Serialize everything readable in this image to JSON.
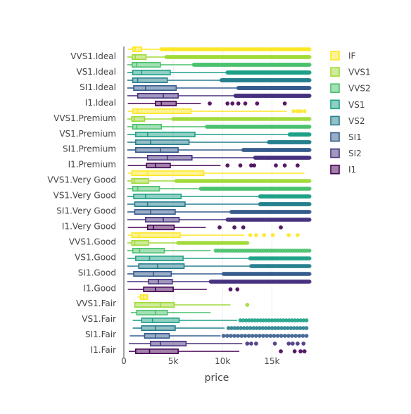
{
  "chart_data": {
    "type": "box",
    "orientation": "horizontal",
    "xlabel": "price",
    "xlim": [
      0,
      18823
    ],
    "x_ticks": [
      0,
      5000,
      10000,
      15000
    ],
    "x_tick_labels": [
      "0",
      "5k",
      "10k",
      "15k"
    ],
    "grid": "vertical",
    "legend_position": "right",
    "categories": [
      "VVS1.Ideal",
      "VS1.Ideal",
      "SI1.Ideal",
      "I1.Ideal",
      "VVS1.Premium",
      "VS1.Premium",
      "SI1.Premium",
      "I1.Premium",
      "VVS1.Very Good",
      "VS1.Very Good",
      "SI1.Very Good",
      "I1.Very Good",
      "VVS1.Good",
      "VS1.Good",
      "SI1.Good",
      "I1.Good",
      "VVS1.Fair",
      "VS1.Fair",
      "SI1.Fair",
      "I1.Fair"
    ],
    "cuts": [
      "Ideal",
      "Premium",
      "Very Good",
      "Good",
      "Fair"
    ],
    "series": [
      {
        "name": "IF",
        "color": "#fde725",
        "boxes": [
          {
            "min": 400,
            "q1": 900,
            "median": 1150,
            "q3": 1800,
            "max": 3600,
            "outliers": [
              [
                3800,
                18800
              ],
              85
            ]
          },
          {
            "min": 400,
            "q1": 900,
            "median": 1400,
            "q3": 6800,
            "max": 16500,
            "outliers": [
              17200,
              17600,
              17900,
              18300
            ]
          },
          {
            "min": 400,
            "q1": 800,
            "median": 2400,
            "q3": 8100,
            "max": 18300,
            "outliers": []
          },
          {
            "min": 400,
            "q1": 800,
            "median": 1500,
            "q3": 5700,
            "max": 12200,
            "outliers": [
              12800,
              13400,
              14200,
              15100,
              16700,
              17600
            ]
          },
          {
            "min": 1400,
            "q1": 1700,
            "median": 2000,
            "q3": 2400,
            "max": 2450,
            "outliers": []
          }
        ]
      },
      {
        "name": "VVS1",
        "color": "#a0da39",
        "boxes": [
          {
            "min": 350,
            "q1": 850,
            "median": 1150,
            "q3": 2250,
            "max": 4200,
            "outliers": [
              [
                4300,
                18800
              ],
              150
            ]
          },
          {
            "min": 350,
            "q1": 800,
            "median": 1050,
            "q3": 2100,
            "max": 4900,
            "outliers": [
              [
                5000,
                18800
              ],
              80
            ]
          },
          {
            "min": 350,
            "q1": 800,
            "median": 1050,
            "q3": 2500,
            "max": 5200,
            "outliers": [
              [
                5300,
                18800
              ],
              90
            ]
          },
          {
            "min": 350,
            "q1": 800,
            "median": 1100,
            "q3": 2500,
            "max": 5400,
            "outliers": [
              [
                5500,
                12500
              ],
              40
            ]
          },
          {
            "min": 1100,
            "q1": 1100,
            "median": 3700,
            "q3": 5100,
            "max": 10800,
            "outliers": [
              12500
            ]
          }
        ]
      },
      {
        "name": "VVS2",
        "color": "#4ac16d",
        "boxes": [
          {
            "min": 350,
            "q1": 850,
            "median": 1300,
            "q3": 3700,
            "max": 7000,
            "outliers": [
              [
                7100,
                18800
              ],
              150
            ]
          },
          {
            "min": 350,
            "q1": 900,
            "median": 1300,
            "q3": 3800,
            "max": 8300,
            "outliers": [
              [
                8400,
                18800
              ],
              80
            ]
          },
          {
            "min": 350,
            "q1": 900,
            "median": 1400,
            "q3": 3600,
            "max": 7700,
            "outliers": [
              [
                7800,
                18800
              ],
              100
            ]
          },
          {
            "min": 350,
            "q1": 900,
            "median": 1600,
            "q3": 4100,
            "max": 8800,
            "outliers": [
              [
                9300,
                18800
              ],
              40
            ]
          },
          {
            "min": 700,
            "q1": 1300,
            "median": 3200,
            "q3": 4400,
            "max": 8800,
            "outliers": []
          }
        ]
      },
      {
        "name": "VS1",
        "color": "#1fa187",
        "boxes": [
          {
            "min": 350,
            "q1": 900,
            "median": 1800,
            "q3": 4700,
            "max": 10400,
            "outliers": [
              [
                10500,
                18800
              ],
              180
            ]
          },
          {
            "min": 350,
            "q1": 1200,
            "median": 2400,
            "q3": 7200,
            "max": 16700,
            "outliers": [
              [
                16800,
                18800
              ],
              40
            ]
          },
          {
            "min": 350,
            "q1": 1000,
            "median": 2200,
            "q3": 5800,
            "max": 13700,
            "outliers": [
              [
                13800,
                18800
              ],
              60
            ]
          },
          {
            "min": 350,
            "q1": 1200,
            "median": 2600,
            "q3": 6000,
            "max": 12700,
            "outliers": [
              [
                12800,
                18800
              ],
              40
            ]
          },
          {
            "min": 900,
            "q1": 1800,
            "median": 2900,
            "q3": 5600,
            "max": 11500,
            "outliers": [
              [
                11800,
                18500
              ],
              24
            ]
          }
        ]
      },
      {
        "name": "VS2",
        "color": "#277f8e",
        "boxes": [
          {
            "min": 350,
            "q1": 900,
            "median": 1400,
            "q3": 4400,
            "max": 9800,
            "outliers": [
              [
                9900,
                18800
              ],
              200
            ]
          },
          {
            "min": 350,
            "q1": 1200,
            "median": 2700,
            "q3": 6600,
            "max": 14600,
            "outliers": [
              [
                14700,
                18800
              ],
              80
            ]
          },
          {
            "min": 350,
            "q1": 1100,
            "median": 2400,
            "q3": 6200,
            "max": 13700,
            "outliers": [
              [
                13800,
                18800
              ],
              90
            ]
          },
          {
            "min": 350,
            "q1": 1500,
            "median": 3400,
            "q3": 6100,
            "max": 12800,
            "outliers": [
              [
                12900,
                18800
              ],
              50
            ]
          },
          {
            "min": 900,
            "q1": 1800,
            "median": 3200,
            "q3": 5200,
            "max": 10200,
            "outliers": [
              [
                10600,
                18500
              ],
              26
            ]
          }
        ]
      },
      {
        "name": "SI1",
        "color": "#365c8d",
        "boxes": [
          {
            "min": 350,
            "q1": 1000,
            "median": 2200,
            "q3": 5300,
            "max": 11500,
            "outliers": [
              [
                11600,
                18800
              ],
              180
            ]
          },
          {
            "min": 350,
            "q1": 1200,
            "median": 3700,
            "q3": 5500,
            "max": 12000,
            "outliers": [
              [
                12100,
                18800
              ],
              80
            ]
          },
          {
            "min": 350,
            "q1": 1100,
            "median": 2700,
            "q3": 5200,
            "max": 10800,
            "outliers": [
              [
                10900,
                18800
              ],
              90
            ]
          },
          {
            "min": 350,
            "q1": 1000,
            "median": 3000,
            "q3": 4800,
            "max": 10000,
            "outliers": [
              [
                10100,
                18800
              ],
              80
            ]
          },
          {
            "min": 600,
            "q1": 2100,
            "median": 3200,
            "q3": 4600,
            "max": 9800,
            "outliers": [
              [
                10100,
                18500
              ],
              24
            ]
          }
        ]
      },
      {
        "name": "SI2",
        "color": "#46327e",
        "boxes": [
          {
            "min": 350,
            "q1": 1400,
            "median": 4000,
            "q3": 5500,
            "max": 11200,
            "outliers": [
              [
                11300,
                18800
              ],
              180
            ]
          },
          {
            "min": 350,
            "q1": 2400,
            "median": 4400,
            "q3": 6900,
            "max": 13200,
            "outliers": [
              [
                13300,
                18800
              ],
              80
            ]
          },
          {
            "min": 350,
            "q1": 2200,
            "median": 4000,
            "q3": 5600,
            "max": 10400,
            "outliers": [
              [
                10500,
                18800
              ],
              80
            ]
          },
          {
            "min": 350,
            "q1": 2500,
            "median": 3500,
            "q3": 4900,
            "max": 8700,
            "outliers": [
              [
                8800,
                18800
              ],
              100
            ]
          },
          {
            "min": 500,
            "q1": 2700,
            "median": 3700,
            "q3": 6300,
            "max": 12000,
            "outliers": [
              12500,
              12900,
              13400,
              15300,
              16700,
              17100,
              17600,
              18200
            ]
          }
        ]
      },
      {
        "name": "I1",
        "color": "#440154",
        "boxes": [
          {
            "min": 400,
            "q1": 3200,
            "median": 3800,
            "q3": 5300,
            "max": 7800,
            "outliers": [
              8700,
              10500,
              11000,
              11600,
              12300,
              13500,
              16300
            ]
          },
          {
            "min": 400,
            "q1": 2300,
            "median": 3200,
            "q3": 4700,
            "max": 9800,
            "outliers": [
              10500,
              11800,
              12900,
              13200,
              15400,
              16300,
              17600
            ]
          },
          {
            "min": 400,
            "q1": 2400,
            "median": 3000,
            "q3": 5100,
            "max": 8300,
            "outliers": [
              9700,
              11200,
              12100,
              15900
            ]
          },
          {
            "min": 400,
            "q1": 2000,
            "median": 3200,
            "q3": 5000,
            "max": 8400,
            "outliers": [
              10800,
              11500
            ]
          },
          {
            "min": 500,
            "q1": 1200,
            "median": 2600,
            "q3": 5500,
            "max": 11700,
            "outliers": [
              15900,
              17300,
              17900,
              18300
            ]
          }
        ]
      }
    ]
  }
}
